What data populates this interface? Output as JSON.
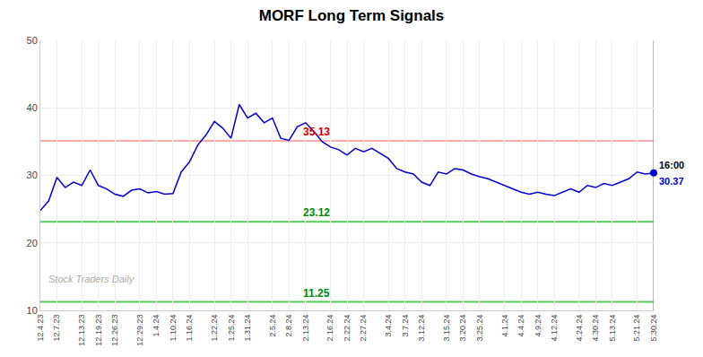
{
  "chart_data": {
    "type": "line",
    "title": "MORF Long Term Signals",
    "categories": [
      "12.4.23",
      null,
      "12.7.23",
      null,
      null,
      "12.13.23",
      null,
      "12.19.23",
      null,
      "12.26.23",
      null,
      null,
      "12.29.23",
      null,
      "1.4.24",
      null,
      "1.10.24",
      null,
      "1.16.24",
      null,
      null,
      "1.22.24",
      null,
      "1.25.24",
      null,
      "1.31.24",
      null,
      null,
      "2.5.24",
      null,
      "2.8.24",
      null,
      "2.13.24",
      null,
      null,
      "2.16.24",
      null,
      "2.22.24",
      null,
      "2.27.24",
      null,
      null,
      "3.4.24",
      null,
      "3.7.24",
      null,
      "3.12.24",
      null,
      null,
      "3.15.24",
      null,
      "3.20.24",
      null,
      "3.25.24",
      null,
      null,
      "4.1.24",
      null,
      "4.4.24",
      null,
      "4.9.24",
      null,
      "4.12.24",
      null,
      null,
      "4.24.24",
      null,
      "4.30.24",
      null,
      "5.13.24",
      null,
      null,
      "5.21.24",
      null,
      "5.30.24"
    ],
    "values": [
      24.8,
      26.2,
      29.7,
      28.2,
      29.0,
      28.5,
      30.8,
      28.5,
      28.0,
      27.2,
      26.9,
      27.8,
      28.0,
      27.4,
      27.6,
      27.2,
      27.3,
      30.5,
      32.0,
      34.5,
      36.0,
      38.0,
      37.0,
      35.5,
      40.5,
      38.5,
      39.2,
      37.8,
      38.5,
      35.5,
      35.2,
      37.2,
      37.8,
      36.5,
      35.0,
      34.2,
      33.8,
      33.0,
      34.0,
      33.5,
      34.0,
      33.2,
      32.5,
      31.0,
      30.5,
      30.2,
      29.0,
      28.5,
      30.5,
      30.2,
      31.0,
      30.8,
      30.2,
      29.8,
      29.5,
      29.0,
      28.5,
      28.0,
      27.5,
      27.2,
      27.5,
      27.2,
      27.0,
      27.5,
      28.0,
      27.5,
      28.5,
      28.2,
      28.8,
      28.5,
      29.0,
      29.5,
      30.5,
      30.2,
      30.37
    ],
    "color": "#0000cc",
    "ylim": [
      10,
      50
    ],
    "yticks": [
      10,
      20,
      30,
      40,
      50
    ],
    "grid": true,
    "reference_lines": [
      {
        "value": 35.13,
        "color": "#ffaaaa",
        "label": "35.13",
        "label_color": "#cc0000"
      },
      {
        "value": 23.12,
        "color": "#55cc55",
        "label": "23.12",
        "label_color": "#008800"
      },
      {
        "value": 11.25,
        "color": "#55cc55",
        "label": "11.25",
        "label_color": "#008800"
      }
    ],
    "end_labels": [
      {
        "text": "16:00",
        "color": "black"
      },
      {
        "text": "30.37",
        "color": "#0000cc"
      }
    ],
    "watermark": "Stock Traders Daily"
  }
}
